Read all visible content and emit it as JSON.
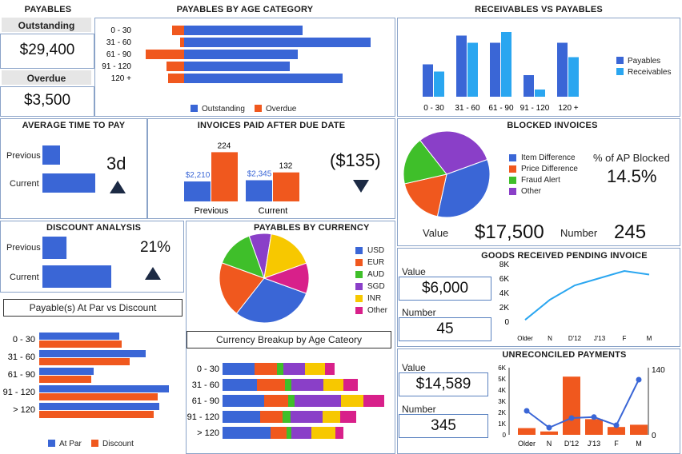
{
  "colors": {
    "blue": "#3a66d6",
    "orange": "#f0581e",
    "sky": "#2aa6f0",
    "green": "#3fbf2a",
    "purple": "#8a3fc8",
    "yellow": "#f7c800",
    "magenta": "#d8208a"
  },
  "payables": {
    "title": "PAYABLES",
    "outstanding_label": "Outstanding",
    "outstanding_value": "$29,400",
    "overdue_label": "Overdue",
    "overdue_value": "$3,500"
  },
  "atp": {
    "title": "AVERAGE TIME TO PAY",
    "prev_label": "Previous",
    "curr_label": "Current",
    "value": "3d",
    "trend": "up"
  },
  "invoices": {
    "title": "INVOICES PAID AFTER DUE DATE",
    "value": "($135)",
    "trend": "down"
  },
  "discount": {
    "title": "DISCOUNT ANALYSIS",
    "prev_label": "Previous",
    "curr_label": "Current",
    "value": "21%",
    "trend": "up"
  },
  "apvd": {
    "title": "Payable(s) At Par vs Discount"
  },
  "blocked": {
    "title": "BLOCKED INVOICES",
    "pct_label": "% of AP Blocked",
    "pct_value": "14.5%",
    "value_label": "Value",
    "value": "$17,500",
    "number_label": "Number",
    "number": "245"
  },
  "grni": {
    "title": "GOODS RECEIVED PENDING INVOICE",
    "value_label": "Value",
    "value": "$6,000",
    "number_label": "Number",
    "number": "45"
  },
  "unrec": {
    "title": "UNRECONCILED PAYMENTS",
    "value_label": "Value",
    "value": "$14,589",
    "number_label": "Number",
    "number": "345"
  },
  "chart_data": [
    {
      "id": "age",
      "type": "bar",
      "orientation": "horizontal",
      "stacked": true,
      "title": "PAYABLES BY AGE CATEGORY",
      "categories": [
        "0 - 30",
        "31 - 60",
        "61 - 90",
        "91 - 120",
        "120 +"
      ],
      "series": [
        {
          "name": "Overdue",
          "values": [
            -15,
            -5,
            -48,
            -22,
            -20
          ]
        },
        {
          "name": "Outstanding",
          "values": [
            148,
            233,
            142,
            132,
            198
          ]
        }
      ],
      "legend": "bottom"
    },
    {
      "id": "rvp",
      "type": "bar",
      "title": "RECEIVABLES VS PAYABLES",
      "categories": [
        "0 - 30",
        "31 - 60",
        "61 - 90",
        "91 - 120",
        "120 +"
      ],
      "series": [
        {
          "name": "Payables",
          "values": [
            45,
            85,
            75,
            30,
            75
          ]
        },
        {
          "name": "Receivables",
          "values": [
            35,
            75,
            90,
            10,
            55
          ]
        }
      ],
      "ylim": [
        0,
        100
      ],
      "legend": "right"
    },
    {
      "id": "atp",
      "type": "bar",
      "orientation": "horizontal",
      "categories": [
        "Previous",
        "Current"
      ],
      "values": [
        20,
        60
      ],
      "xlim": [
        0,
        100
      ]
    },
    {
      "id": "inv",
      "type": "bar",
      "categories": [
        "Previous",
        "Current"
      ],
      "series": [
        {
          "name": "Value",
          "values": [
            2210,
            2345
          ],
          "labels": [
            "$2,210",
            "$2,345"
          ]
        },
        {
          "name": "Count",
          "values": [
            224,
            132
          ],
          "labels": [
            "224",
            "132"
          ]
        }
      ]
    },
    {
      "id": "disc",
      "type": "bar",
      "orientation": "horizontal",
      "categories": [
        "Previous",
        "Current"
      ],
      "values": [
        35,
        100
      ],
      "xlim": [
        0,
        100
      ]
    },
    {
      "id": "apvd",
      "type": "bar",
      "orientation": "horizontal",
      "categories": [
        "0 - 30",
        "31 - 60",
        "61 - 90",
        "91 - 120",
        "> 120"
      ],
      "series": [
        {
          "name": "At Par",
          "values": [
            100,
            133,
            68,
            162,
            150
          ]
        },
        {
          "name": "Discount",
          "values": [
            103,
            113,
            65,
            148,
            143
          ]
        }
      ],
      "legend": "bottom"
    },
    {
      "id": "blocked",
      "type": "pie",
      "title": "BLOCKED INVOICES",
      "labels": [
        "Item Difference",
        "Price Difference",
        "Fraud Alert",
        "Other"
      ],
      "values": [
        34,
        18,
        18,
        30
      ],
      "colors": [
        "#3a66d6",
        "#f0581e",
        "#3fbf2a",
        "#8a3fc8"
      ]
    },
    {
      "id": "currency",
      "type": "pie",
      "title": "PAYABLES BY CURRENCY",
      "labels": [
        "USD",
        "EUR",
        "AUD",
        "SGD",
        "INR",
        "Other"
      ],
      "values": [
        30,
        20,
        14,
        8,
        17,
        11
      ],
      "colors": [
        "#3a66d6",
        "#f0581e",
        "#3fbf2a",
        "#8a3fc8",
        "#f7c800",
        "#d8208a"
      ]
    },
    {
      "id": "cur_age",
      "type": "bar",
      "orientation": "horizontal",
      "stacked": true,
      "title": "Currency Breakup by Age Cateory",
      "categories": [
        "0 - 30",
        "31 - 60",
        "61 - 90",
        "91 - 120",
        "> 120"
      ],
      "series": [
        {
          "name": "USD",
          "values": [
            40,
            43,
            52,
            47,
            60
          ]
        },
        {
          "name": "EUR",
          "values": [
            28,
            35,
            30,
            28,
            20
          ]
        },
        {
          "name": "AUD",
          "values": [
            8,
            8,
            8,
            10,
            6
          ]
        },
        {
          "name": "SGD",
          "values": [
            27,
            40,
            58,
            40,
            25
          ]
        },
        {
          "name": "INR",
          "values": [
            25,
            25,
            28,
            22,
            30
          ]
        },
        {
          "name": "Other",
          "values": [
            12,
            18,
            26,
            20,
            10
          ]
        }
      ]
    },
    {
      "id": "grni",
      "type": "line",
      "categories": [
        "Older",
        "N",
        "D'12",
        "J'13",
        "F",
        "M"
      ],
      "values": [
        200,
        3000,
        5000,
        6000,
        7000,
        6500
      ],
      "ylim": [
        0,
        8000
      ],
      "yticks": [
        "0",
        "2K",
        "4K",
        "6K",
        "8K"
      ]
    },
    {
      "id": "unrec",
      "type": "bar",
      "categories": [
        "Older",
        "N",
        "D'12",
        "J'13",
        "F",
        "M"
      ],
      "series": [
        {
          "name": "Value",
          "values": [
            600,
            300,
            5200,
            1400,
            700,
            900
          ]
        },
        {
          "name": "Number",
          "values": [
            50,
            15,
            35,
            37,
            20,
            115
          ]
        }
      ],
      "ylim": [
        0,
        6000
      ],
      "y2lim": [
        0,
        140
      ],
      "yticks": [
        "0",
        "1K",
        "2K",
        "3K",
        "4K",
        "5K",
        "6K"
      ],
      "y2ticks": [
        "0",
        "140"
      ]
    }
  ]
}
